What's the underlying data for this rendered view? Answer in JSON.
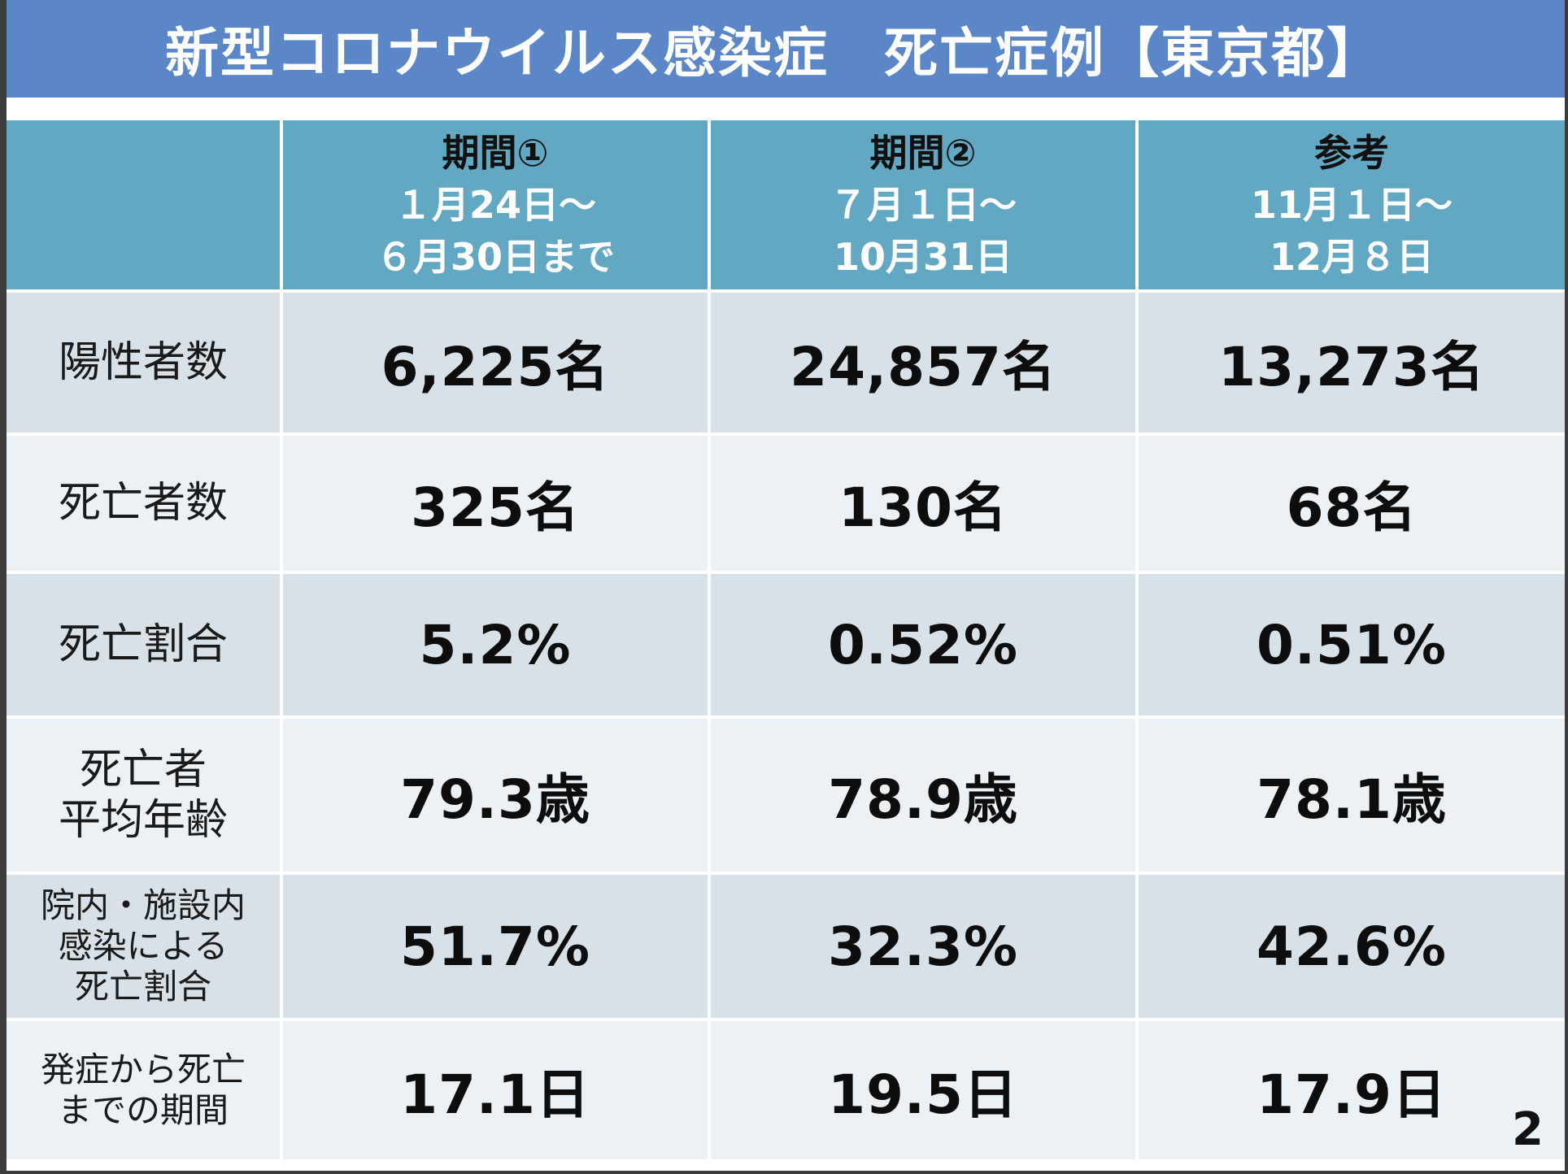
{
  "title": "新型コロナウイルス感染症　死亡症例【東京都】",
  "columns": [
    {
      "heading": "期間①",
      "line2": "１月24日～",
      "line3": "６月30日まで"
    },
    {
      "heading": "期間②",
      "line2": "７月１日～",
      "line3": "10月31日"
    },
    {
      "heading": "参考",
      "line2": "11月１日～",
      "line3": "12月８日"
    }
  ],
  "rows": [
    {
      "label": [
        "陽性者数"
      ],
      "values": [
        "6,225名",
        "24,857名",
        "13,273名"
      ]
    },
    {
      "label": [
        "死亡者数"
      ],
      "values": [
        "325名",
        "130名",
        "68名"
      ]
    },
    {
      "label": [
        "死亡割合"
      ],
      "values": [
        "5.2%",
        "0.52%",
        "0.51%"
      ]
    },
    {
      "label": [
        "死亡者",
        "平均年齢"
      ],
      "values": [
        "79.3歳",
        "78.9歳",
        "78.1歳"
      ]
    },
    {
      "label": [
        "院内・施設内",
        "感染による",
        "死亡割合"
      ],
      "values": [
        "51.7%",
        "32.3%",
        "42.6%"
      ]
    },
    {
      "label": [
        "発症から死亡",
        "までの期間"
      ],
      "values": [
        "17.1日",
        "19.5日",
        "17.9日"
      ]
    }
  ],
  "page_number": "2",
  "colors": {
    "title_bar": "#5b86c8",
    "header_row": "#63a8c2",
    "band_dark": "#d8e1e8",
    "band_light": "#ebf1f5"
  }
}
